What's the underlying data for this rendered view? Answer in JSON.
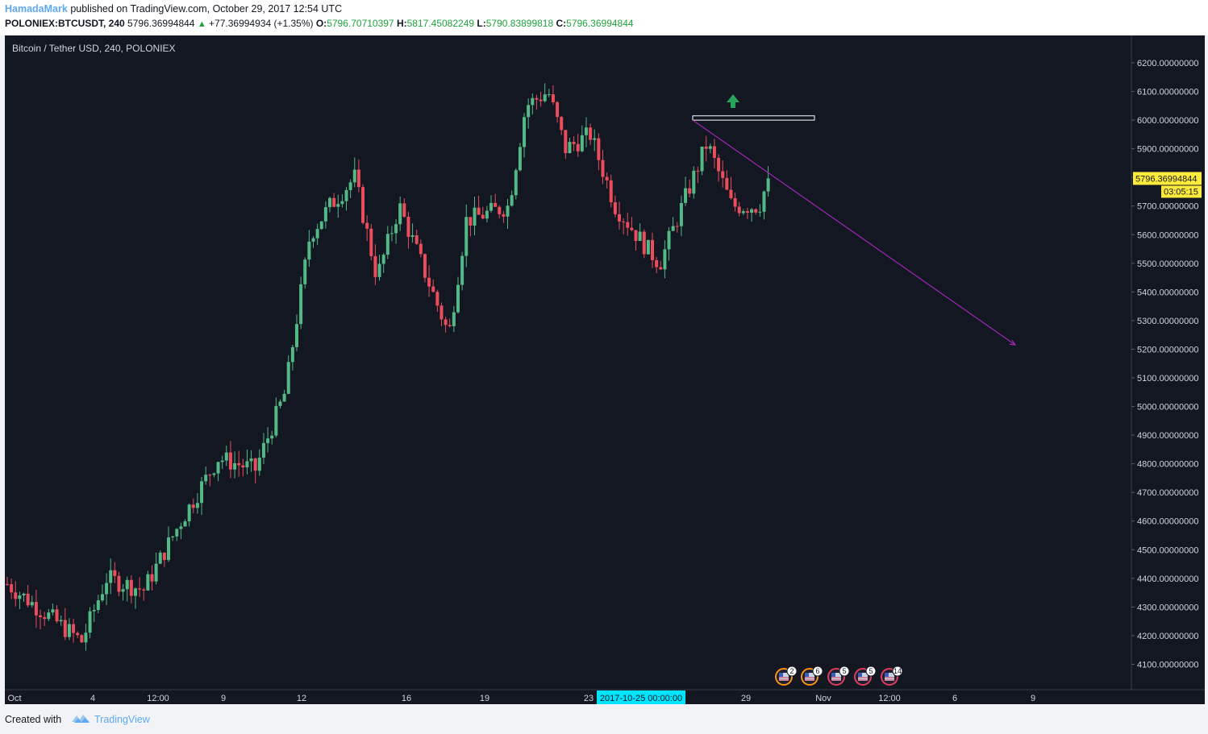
{
  "header": {
    "author": "HamadaMark",
    "published_text": "published on TradingView.com, October 29, 2017 12:54 UTC",
    "symbol": "POLONIEX:BTCUSDT, 240",
    "last_price": "5796.36994844",
    "change_arrow": "▲",
    "change": "+77.36994934 (+1.35%)",
    "open_label": "O:",
    "open": "5796.70710397",
    "high_label": "H:",
    "high": "5817.45082249",
    "low_label": "L:",
    "low": "5790.83899818",
    "close_label": "C:",
    "close": "5796.36994844"
  },
  "chart_data": {
    "type": "candlestick",
    "title": "Bitcoin / Tether USD, 240, POLONIEX",
    "interval": "240",
    "ylim": [
      4000,
      6300
    ],
    "y_ticks": [
      "6200.00000000",
      "6100.00000000",
      "6000.00000000",
      "5900.00000000",
      "5800.00000000",
      "5700.00000000",
      "5600.00000000",
      "5500.00000000",
      "5400.00000000",
      "5300.00000000",
      "5200.00000000",
      "5100.00000000",
      "5000.00000000",
      "4900.00000000",
      "4800.00000000",
      "4700.00000000",
      "4600.00000000",
      "4500.00000000",
      "4400.00000000",
      "4300.00000000",
      "4200.00000000",
      "4100.00000000"
    ],
    "x_ticks": [
      "Oct",
      "4",
      "12:00",
      "9",
      "12",
      "16",
      "19",
      "23",
      "29",
      "Nov",
      "12:00",
      "6",
      "9"
    ],
    "crosshair_date": "2017-10-25 00:00:00",
    "last_price_label": "5796.36994844",
    "countdown_label": "03:05:15",
    "path": [
      {
        "day": 0,
        "price": 4380
      },
      {
        "day": 3,
        "price": 4180
      },
      {
        "day": 4,
        "price": 4400
      },
      {
        "day": 5.5,
        "price": 4360
      },
      {
        "day": 7,
        "price": 4600
      },
      {
        "day": 8.5,
        "price": 4820
      },
      {
        "day": 10,
        "price": 4780
      },
      {
        "day": 11.2,
        "price": 5050
      },
      {
        "day": 12.2,
        "price": 5600
      },
      {
        "day": 13,
        "price": 5700
      },
      {
        "day": 14,
        "price": 5800
      },
      {
        "day": 14.9,
        "price": 5450
      },
      {
        "day": 15.8,
        "price": 5700
      },
      {
        "day": 17.8,
        "price": 5250
      },
      {
        "day": 18.5,
        "price": 5650
      },
      {
        "day": 20.2,
        "price": 5700
      },
      {
        "day": 20.9,
        "price": 6050
      },
      {
        "day": 21.8,
        "price": 6100
      },
      {
        "day": 22.5,
        "price": 5900
      },
      {
        "day": 23.5,
        "price": 5950
      },
      {
        "day": 24.5,
        "price": 5700
      },
      {
        "day": 25.8,
        "price": 5550
      },
      {
        "day": 26.3,
        "price": 5500
      },
      {
        "day": 27.2,
        "price": 5700
      },
      {
        "day": 28.2,
        "price": 5920
      },
      {
        "day": 29.2,
        "price": 5700
      },
      {
        "day": 30.3,
        "price": 5700
      },
      {
        "day": 30.7,
        "price": 5800
      }
    ],
    "drawings": {
      "target_box_low": 6000,
      "target_box_high": 6015,
      "trendline_start_price": 6000,
      "trendline_end_price": 5215
    },
    "event_flags": [
      "2",
      "6",
      "5",
      "5",
      "14"
    ],
    "colors": {
      "background": "#131722",
      "up": "#53b987",
      "down": "#eb4d5c",
      "trendline": "#9c27b0",
      "target_box": "#ffffff",
      "target_arrow": "#26a65b",
      "last_price_bg": "#ffeb3b",
      "crosshair_bg": "#00e5ff"
    }
  },
  "footer": {
    "created_with": "Created with",
    "brand": "TradingView"
  }
}
